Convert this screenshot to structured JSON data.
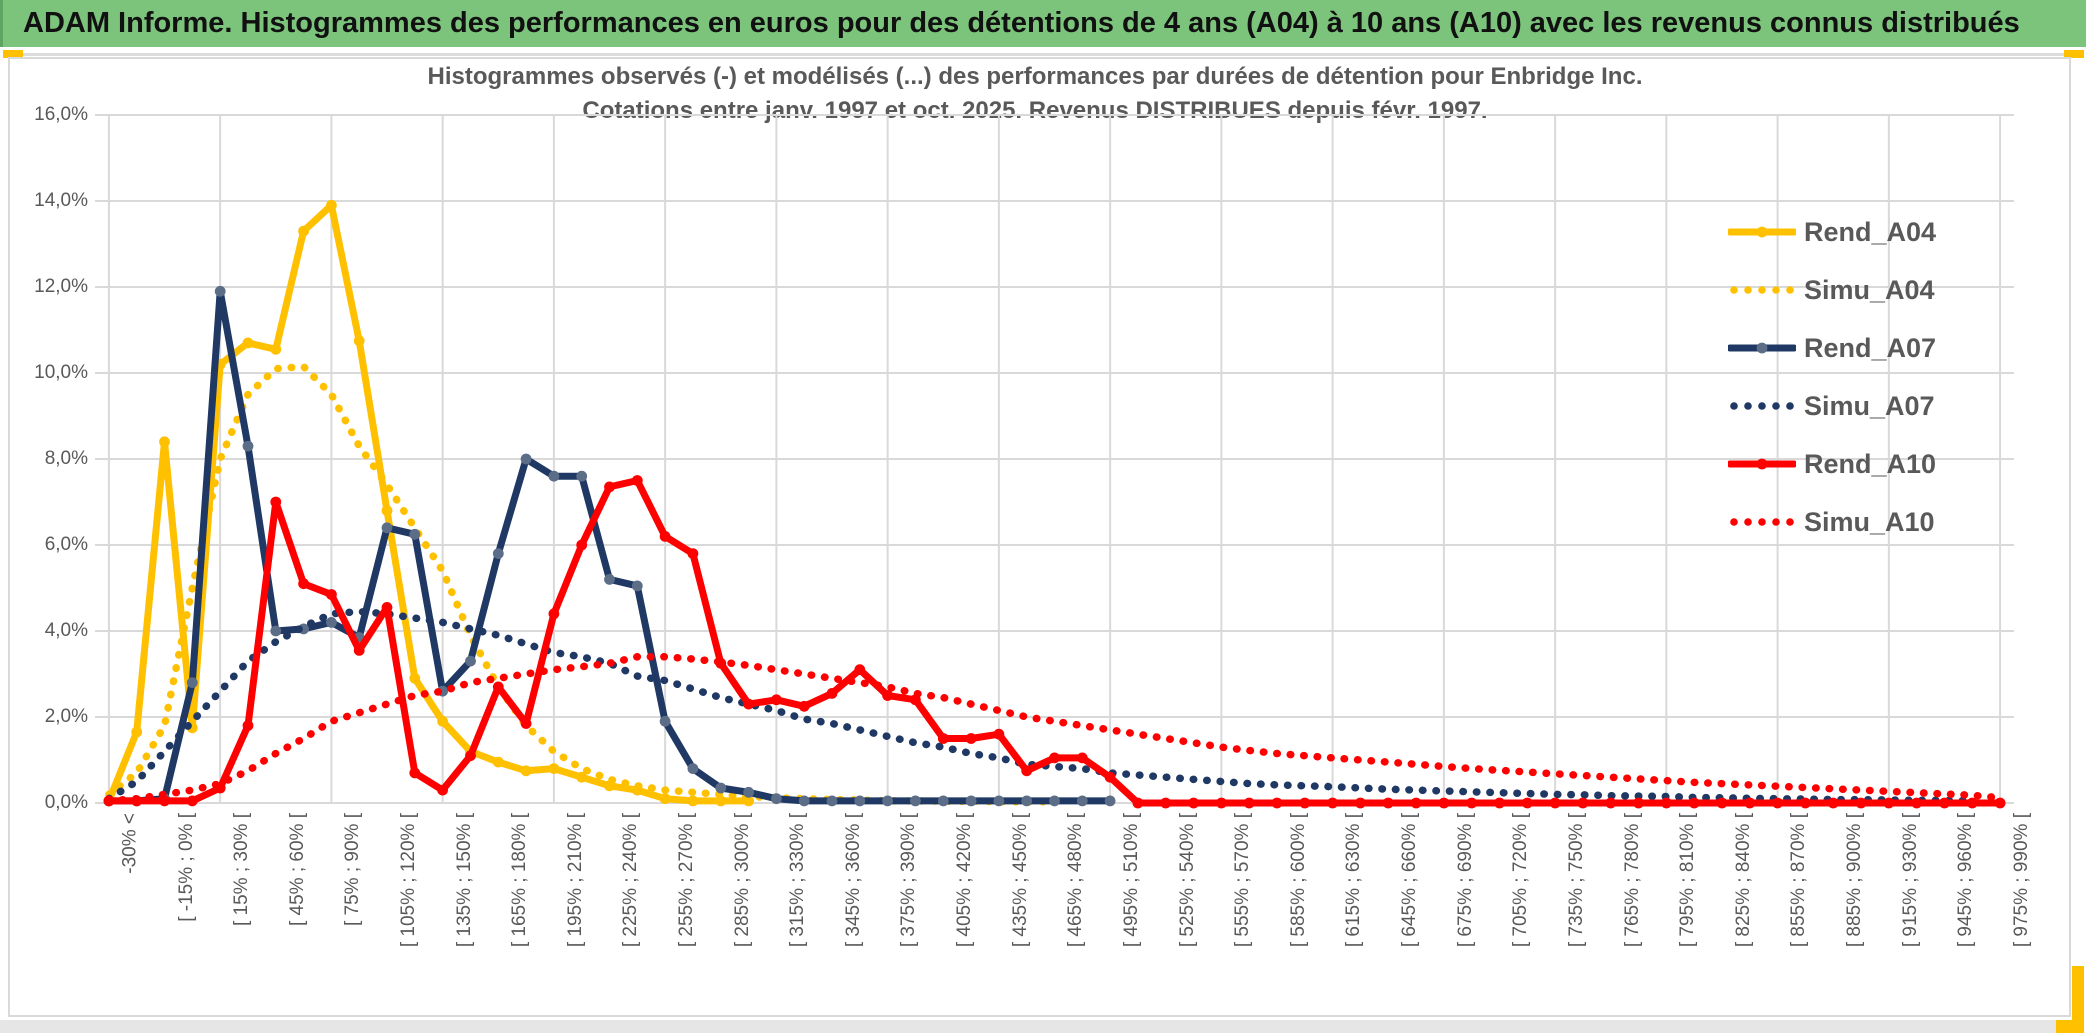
{
  "banner": {
    "title": "ADAM Informe. Histogrammes des performances en euros pour des détentions de 4 ans (A04) à 10 ans (A10) avec les revenus connus distribués"
  },
  "chart": {
    "title_line1": "Histogrammes observés (-) et modélisés (...) des performances par durées de détention pour Enbridge Inc.",
    "title_line2": "Cotations entre janv. 1997 et oct. 2025. Revenus DISTRIBUES depuis févr. 1997.",
    "y_tick_labels": [
      "16,0%",
      "14,0%",
      "12,0%",
      "10,0%",
      "8,0%",
      "6,0%",
      "4,0%",
      "2,0%",
      "0,0%"
    ],
    "legend": [
      {
        "label": "Rend_A04",
        "color": "#FFC000",
        "style": "solid",
        "marker": "#FFC000"
      },
      {
        "label": "Simu_A04",
        "color": "#FFC000",
        "style": "dotted"
      },
      {
        "label": "Rend_A07",
        "color": "#1F3864",
        "style": "solid",
        "marker": "#5C6D87"
      },
      {
        "label": "Simu_A07",
        "color": "#1F3864",
        "style": "dotted"
      },
      {
        "label": "Rend_A10",
        "color": "#FF0000",
        "style": "solid",
        "marker": "#FF0000"
      },
      {
        "label": "Simu_A10",
        "color": "#FF0000",
        "style": "dotted"
      }
    ],
    "colors": {
      "gold": "#FFC000",
      "navy": "#1F3864",
      "navy_marker": "#5C6D87",
      "red": "#FF0000",
      "grid": "#D9D9D9",
      "text": "#595959",
      "banner_bg": "#7CC47C",
      "accent_gold": "#FFC000"
    }
  },
  "chart_data": {
    "type": "line",
    "title": "Histogrammes observés (-) et modélisés (...) des performances par durées de détention pour Enbridge Inc. Cotations entre janv. 1997 et oct. 2025. Revenus DISTRIBUES depuis févr. 1997.",
    "ylabel": "",
    "xlabel": "",
    "ylim": [
      0,
      16
    ],
    "y_tick_step_pct": 2,
    "grid": true,
    "legend_position": "right",
    "n_bins": 69,
    "label_every": 2,
    "x_labels": [
      "-30% <",
      "[ -15% ; 0% [",
      "[ 15% ; 30% [",
      "[ 45% ; 60% [",
      "[ 75% ; 90% [",
      "[ 105% ; 120% [",
      "[ 135% ; 150% [",
      "[ 165% ; 180% [",
      "[ 195% ; 210% [",
      "[ 225% ; 240% [",
      "[ 255% ; 270% [",
      "[ 285% ; 300% [",
      "[ 315% ; 330% [",
      "[ 345% ; 360% [",
      "[ 375% ; 390% [",
      "[ 405% ; 420% [",
      "[ 435% ; 450% [",
      "[ 465% ; 480% [",
      "[ 495% ; 510% [",
      "[ 525% ; 540% [",
      "[ 555% ; 570% [",
      "[ 585% ; 600% [",
      "[ 615% ; 630% [",
      "[ 645% ; 660% [",
      "[ 675% ; 690% [",
      "[ 705% ; 720% [",
      "[ 735% ; 750% [",
      "[ 765% ; 780% [",
      "[ 795% ; 810% [",
      "[ 825% ; 840% [",
      "[ 855% ; 870% [",
      "[ 885% ; 900% [",
      "[ 915% ; 930% [",
      "[ 945% ; 960% [",
      "[ 975% ; 990% ["
    ],
    "series": [
      {
        "name": "Rend_A04",
        "style": "solid",
        "color": "#FFC000",
        "marker_color": "#FFC000",
        "values": [
          0.05,
          1.65,
          8.4,
          1.75,
          10.2,
          10.7,
          10.55,
          13.3,
          13.9,
          10.75,
          6.8,
          2.9,
          1.9,
          1.2,
          0.95,
          0.75,
          0.8,
          0.6,
          0.4,
          0.3,
          0.1,
          0.05,
          0.05,
          0.05,
          null,
          null,
          null,
          null,
          null,
          null,
          null,
          null,
          null,
          null,
          null,
          null,
          null,
          null,
          null,
          null,
          null,
          null,
          null,
          null,
          null,
          null,
          null,
          null,
          null,
          null,
          null,
          null,
          null,
          null,
          null,
          null,
          null,
          null,
          null,
          null,
          null,
          null,
          null,
          null,
          null,
          null,
          null,
          null,
          null
        ]
      },
      {
        "name": "Simu_A04",
        "style": "dotted",
        "color": "#FFC000",
        "values": [
          0.2,
          0.7,
          1.8,
          5.0,
          8.0,
          9.5,
          10.1,
          10.15,
          9.5,
          8.3,
          7.4,
          6.4,
          5.4,
          3.9,
          2.7,
          1.8,
          1.2,
          0.8,
          0.55,
          0.4,
          0.3,
          0.25,
          0.2,
          0.15,
          0.12,
          0.1,
          0.08,
          0.07,
          0.05,
          0.05,
          0.04,
          0.04,
          0.03,
          0.03,
          0.03,
          null,
          null,
          null,
          null,
          null,
          null,
          null,
          null,
          null,
          null,
          null,
          null,
          null,
          null,
          null,
          null,
          null,
          null,
          null,
          null,
          null,
          null,
          null,
          null,
          null,
          null,
          null,
          null,
          null,
          null,
          null,
          null,
          null,
          null
        ]
      },
      {
        "name": "Rend_A07",
        "style": "solid",
        "color": "#1F3864",
        "marker_color": "#5C6D87",
        "values": [
          0.05,
          0.05,
          0.1,
          2.8,
          11.9,
          8.3,
          4.0,
          4.05,
          4.2,
          3.85,
          6.4,
          6.25,
          2.6,
          3.3,
          5.8,
          8.0,
          7.6,
          7.6,
          5.2,
          5.05,
          1.9,
          0.8,
          0.35,
          0.25,
          0.1,
          0.05,
          0.05,
          0.05,
          0.05,
          0.05,
          0.05,
          0.05,
          0.05,
          0.05,
          0.05,
          0.05,
          0.05,
          null,
          null,
          null,
          null,
          null,
          null,
          null,
          null,
          null,
          null,
          null,
          null,
          null,
          null,
          null,
          null,
          null,
          null,
          null,
          null,
          null,
          null,
          null,
          null,
          null,
          null,
          null,
          null,
          null,
          null,
          null,
          null
        ]
      },
      {
        "name": "Simu_A07",
        "style": "dotted",
        "color": "#1F3864",
        "values": [
          0.1,
          0.5,
          1.2,
          1.9,
          2.6,
          3.3,
          3.75,
          4.1,
          4.4,
          4.45,
          4.4,
          4.3,
          4.2,
          4.05,
          3.9,
          3.7,
          3.5,
          3.4,
          3.25,
          2.95,
          2.85,
          2.65,
          2.45,
          2.3,
          2.15,
          1.95,
          1.85,
          1.7,
          1.55,
          1.4,
          1.3,
          1.15,
          1.05,
          0.9,
          0.85,
          0.8,
          0.7,
          0.65,
          0.6,
          0.55,
          0.5,
          0.45,
          0.42,
          0.4,
          0.38,
          0.35,
          0.32,
          0.3,
          0.28,
          0.26,
          0.24,
          0.22,
          0.2,
          0.19,
          0.17,
          0.16,
          0.15,
          0.13,
          0.12,
          0.11,
          0.1,
          0.09,
          0.08,
          0.08,
          0.07,
          0.06,
          0.06,
          0.05,
          null
        ]
      },
      {
        "name": "Rend_A10",
        "style": "solid",
        "color": "#FF0000",
        "marker_color": "#FF0000",
        "values": [
          0.05,
          0.05,
          0.05,
          0.05,
          0.35,
          1.8,
          7.0,
          5.1,
          4.85,
          3.55,
          4.55,
          0.7,
          0.3,
          1.1,
          2.7,
          1.85,
          4.4,
          6.0,
          7.35,
          7.5,
          6.2,
          5.8,
          3.25,
          2.3,
          2.4,
          2.25,
          2.55,
          3.1,
          2.5,
          2.4,
          1.5,
          1.5,
          1.6,
          0.75,
          1.05,
          1.05,
          0.6,
          0,
          0,
          0,
          0,
          0,
          0,
          0,
          0,
          0,
          0,
          0,
          0,
          0,
          0,
          0,
          0,
          0,
          0,
          0,
          0,
          0,
          0,
          0,
          0,
          0,
          0,
          0,
          0,
          0,
          0,
          0,
          0
        ]
      },
      {
        "name": "Simu_A10",
        "style": "dotted",
        "color": "#FF0000",
        "values": [
          0.05,
          0.1,
          0.2,
          0.3,
          0.45,
          0.75,
          1.15,
          1.5,
          1.9,
          2.1,
          2.3,
          2.5,
          2.6,
          2.8,
          2.9,
          3.0,
          3.1,
          3.17,
          3.25,
          3.4,
          3.4,
          3.35,
          3.28,
          3.2,
          3.1,
          3.0,
          2.9,
          2.8,
          2.7,
          2.55,
          2.45,
          2.3,
          2.15,
          2.0,
          1.9,
          1.8,
          1.7,
          1.6,
          1.5,
          1.4,
          1.3,
          1.22,
          1.15,
          1.1,
          1.05,
          1.0,
          0.95,
          0.9,
          0.85,
          0.8,
          0.76,
          0.72,
          0.68,
          0.64,
          0.6,
          0.56,
          0.52,
          0.48,
          0.45,
          0.42,
          0.39,
          0.36,
          0.33,
          0.3,
          0.27,
          0.24,
          0.21,
          0.18,
          0.12
        ]
      }
    ]
  }
}
